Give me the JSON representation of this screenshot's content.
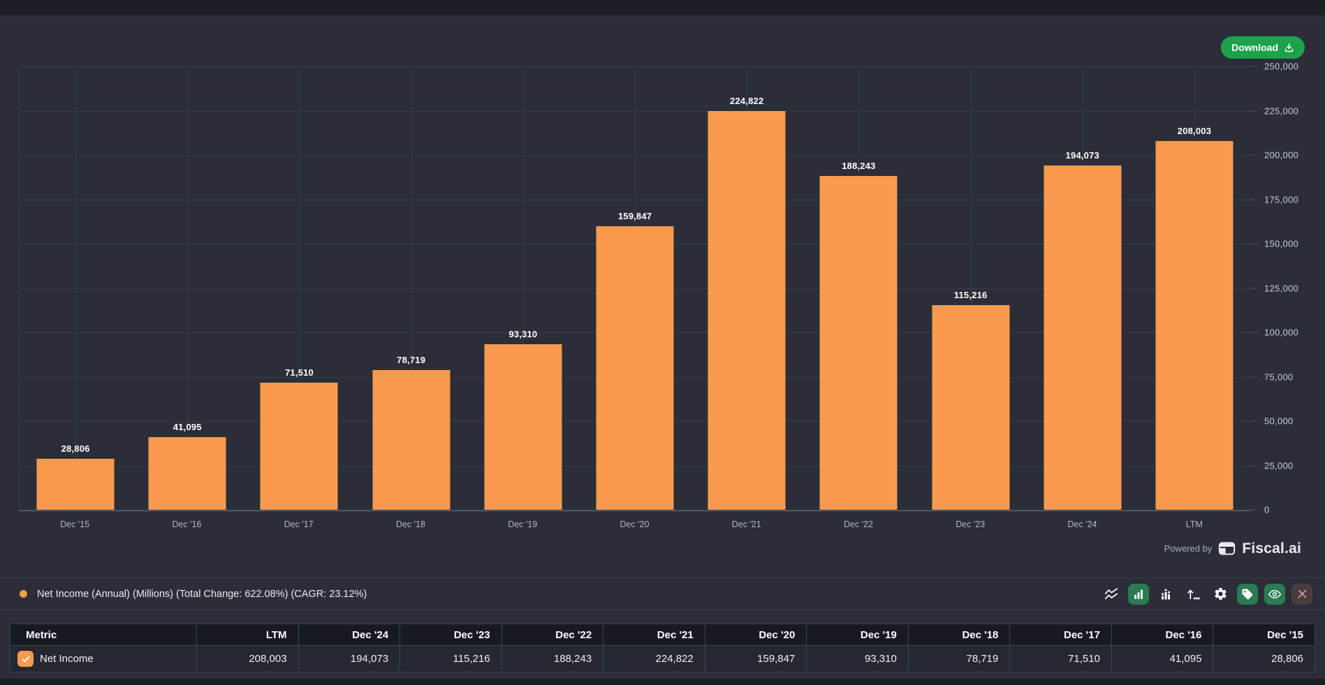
{
  "toolbar": {
    "download_label": "Download"
  },
  "chart_data": {
    "type": "bar",
    "title": "Net Income (Annual) (Millions) (Total Change: 622.08%) (CAGR: 23.12%)",
    "xlabel": "",
    "ylabel": "",
    "categories": [
      "Dec '15",
      "Dec '16",
      "Dec '17",
      "Dec '18",
      "Dec '19",
      "Dec '20",
      "Dec '21",
      "Dec '22",
      "Dec '23",
      "Dec '24",
      "LTM"
    ],
    "values": [
      28806,
      41095,
      71510,
      78719,
      93310,
      159847,
      224822,
      188243,
      115216,
      194073,
      208003
    ],
    "value_labels": [
      "28,806",
      "41,095",
      "71,510",
      "78,719",
      "93,310",
      "159,847",
      "224,822",
      "188,243",
      "115,216",
      "194,073",
      "208,003"
    ],
    "ylim": [
      0,
      250000
    ],
    "yticks": [
      "250,000",
      "225,000",
      "200,000",
      "175,000",
      "150,000",
      "125,000",
      "100,000",
      "75,000",
      "50,000",
      "25,000",
      "0"
    ],
    "y_axis_side": "right",
    "grid": true,
    "bar_color": "#f99a4e",
    "legend_position": "bottom"
  },
  "powered_by": {
    "prefix": "Powered by",
    "brand": "Fiscal.ai"
  },
  "legend": {
    "series_label": "Net Income (Annual) (Millions) (Total Change: 622.08%) (CAGR: 23.12%)",
    "dot_color": "#f99a4e",
    "tools": [
      "multi-line-chart",
      "bar-chart",
      "stacked-bar-chart",
      "sort-order",
      "settings-gear",
      "labels-tag",
      "visibility-eye",
      "remove-series"
    ],
    "active_tools": [
      "bar-chart",
      "labels-tag",
      "visibility-eye"
    ]
  },
  "table": {
    "headers": [
      "Metric",
      "LTM",
      "Dec '24",
      "Dec '23",
      "Dec '22",
      "Dec '21",
      "Dec '20",
      "Dec '19",
      "Dec '18",
      "Dec '17",
      "Dec '16",
      "Dec '15"
    ],
    "rows": [
      {
        "metric": "Net Income",
        "checked": true,
        "values": [
          "208,003",
          "194,073",
          "115,216",
          "188,243",
          "224,822",
          "159,847",
          "93,310",
          "78,719",
          "71,510",
          "41,095",
          "28,806"
        ]
      }
    ]
  },
  "colors": {
    "background": "#2b2e38",
    "top_strip": "#1b1e24",
    "bar": "#f99a4e",
    "download_green": "#1da24c",
    "tool_active_green": "#2a7a52",
    "close_maroon": "#4b3a3e"
  }
}
